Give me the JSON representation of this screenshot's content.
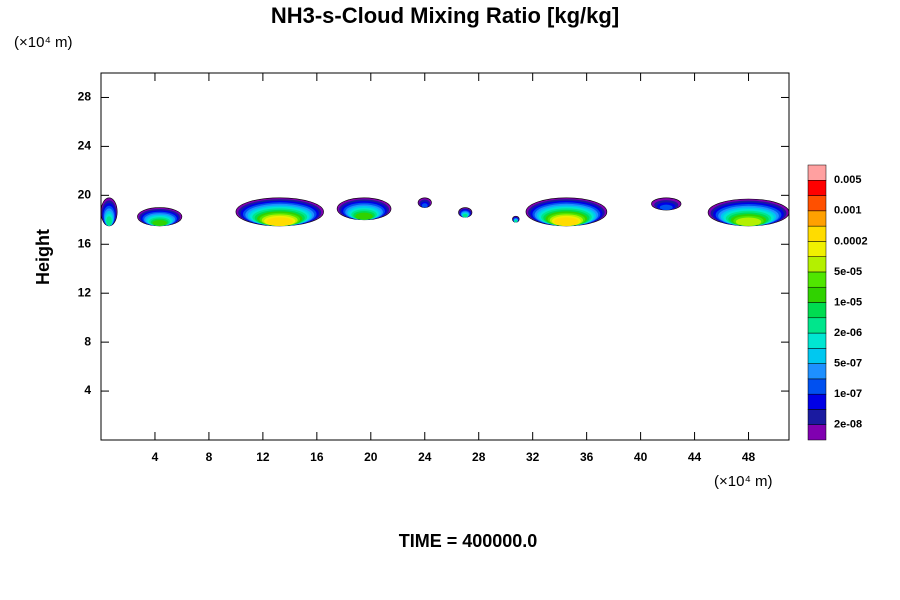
{
  "chart_data": {
    "type": "contour",
    "title": "NH3-s-Cloud Mixing Ratio [kg/kg]",
    "y_label": "Height",
    "x_unit": "(×10⁴ m)",
    "y_unit": "(×10⁴ m)",
    "footer": "TIME = 400000.0",
    "xlim": [
      0,
      51
    ],
    "ylim": [
      0,
      30
    ],
    "xticks": [
      4,
      8,
      12,
      16,
      20,
      24,
      28,
      32,
      36,
      40,
      44,
      48
    ],
    "yticks": [
      4,
      8,
      12,
      16,
      20,
      24,
      28
    ],
    "colorbar": {
      "colors": [
        "#8000b0",
        "#1a1aa0",
        "#0000e6",
        "#0050f0",
        "#1e90ff",
        "#00c8f0",
        "#00e6d2",
        "#00e68c",
        "#00dc50",
        "#30d200",
        "#50e600",
        "#b4f000",
        "#f0f000",
        "#ffdc00",
        "#ffa000",
        "#ff5000",
        "#ff0000",
        "#ffa0a0"
      ],
      "labels": [
        "2e-08",
        "1e-07",
        "5e-07",
        "2e-06",
        "1e-05",
        "5e-05",
        "0.0002",
        "0.001",
        "0.005"
      ],
      "levels": [
        2e-08,
        1e-07,
        5e-07,
        2e-06,
        1e-05,
        5e-05,
        0.0002,
        0.001,
        0.005
      ]
    },
    "cells": [
      {
        "x": [
          0,
          1.2
        ],
        "y": [
          17.5,
          19.8
        ],
        "value": 2e-06
      },
      {
        "x": [
          2.7,
          6
        ],
        "y": [
          17.5,
          19
        ],
        "value": 1e-05
      },
      {
        "x": [
          10,
          16.5
        ],
        "y": [
          17.5,
          19.8
        ],
        "value": 0.0002
      },
      {
        "x": [
          17.5,
          21.5
        ],
        "y": [
          18,
          19.8
        ],
        "value": 1e-05
      },
      {
        "x": [
          23.5,
          24.5
        ],
        "y": [
          19,
          19.8
        ],
        "value": 1e-07
      },
      {
        "x": [
          26.5,
          27.5
        ],
        "y": [
          18.2,
          19
        ],
        "value": 2e-06
      },
      {
        "x": [
          30.5,
          31
        ],
        "y": [
          17.8,
          18.3
        ],
        "value": 2e-06
      },
      {
        "x": [
          31.5,
          37.5
        ],
        "y": [
          17.5,
          19.8
        ],
        "value": 0.0002
      },
      {
        "x": [
          40.8,
          43
        ],
        "y": [
          18.8,
          19.8
        ],
        "value": 1e-07
      },
      {
        "x": [
          45,
          51
        ],
        "y": [
          17.5,
          19.7
        ],
        "value": 5e-05
      }
    ]
  }
}
